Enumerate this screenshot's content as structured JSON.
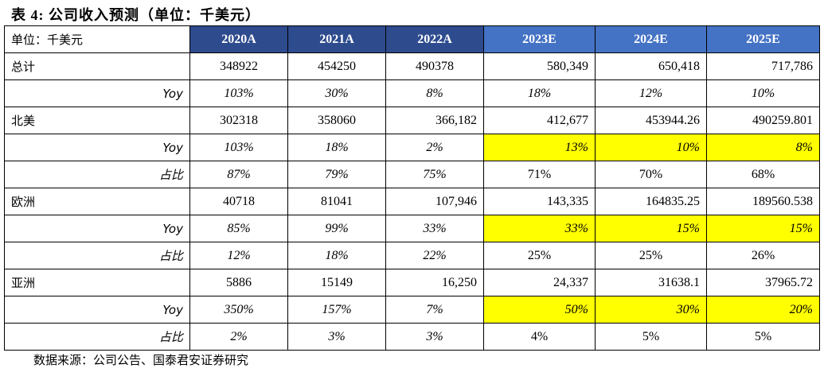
{
  "title": "表 4: 公司收入预测（单位：千美元）",
  "colors": {
    "actual_header": "#2e4b8e",
    "estimate_header": "#4472c4",
    "highlight": "#ffff00"
  },
  "header": {
    "unit_label": "单位：千美元",
    "years": [
      "2020A",
      "2021A",
      "2022A",
      "2023E",
      "2024E",
      "2025E"
    ]
  },
  "rows": [
    {
      "label": "总计",
      "cells": [
        "348922",
        "454250",
        "490378",
        "580,349",
        "650,418",
        "717,786"
      ]
    },
    {
      "label": "Yoy",
      "cells": [
        "103%",
        "30%",
        "8%",
        "18%",
        "12%",
        "10%"
      ]
    },
    {
      "label": "北美",
      "cells": [
        "302318",
        "358060",
        "366,182",
        "412,677",
        "453944.26",
        "490259.801"
      ]
    },
    {
      "label": "Yoy",
      "cells": [
        "103%",
        "18%",
        "2%",
        "13%",
        "10%",
        "8%"
      ]
    },
    {
      "label": "占比",
      "cells": [
        "87%",
        "79%",
        "75%",
        "71%",
        "70%",
        "68%"
      ]
    },
    {
      "label": "欧洲",
      "cells": [
        "40718",
        "81041",
        "107,946",
        "143,335",
        "164835.25",
        "189560.538"
      ]
    },
    {
      "label": "Yoy",
      "cells": [
        "85%",
        "99%",
        "33%",
        "33%",
        "15%",
        "15%"
      ]
    },
    {
      "label": "占比",
      "cells": [
        "12%",
        "18%",
        "22%",
        "25%",
        "25%",
        "26%"
      ]
    },
    {
      "label": "亚洲",
      "cells": [
        "5886",
        "15149",
        "16,250",
        "24,337",
        "31638.1",
        "37965.72"
      ]
    },
    {
      "label": "Yoy",
      "cells": [
        "350%",
        "157%",
        "7%",
        "50%",
        "30%",
        "20%"
      ]
    },
    {
      "label": "占比",
      "cells": [
        "2%",
        "3%",
        "3%",
        "4%",
        "5%",
        "5%"
      ]
    }
  ],
  "source": "数据来源：公司公告、国泰君安证券研究"
}
